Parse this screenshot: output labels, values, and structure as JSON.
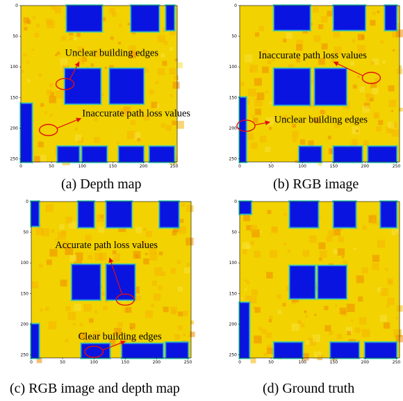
{
  "colors": {
    "background": "#f2d200",
    "mid": "#f6b400",
    "high": "#f08a00",
    "low": "#22d8b8",
    "building": "#0a14e0",
    "buildingEdge": "#1e6cf0",
    "arrow": "#e01010"
  },
  "chart_data": [
    {
      "type": "heatmap",
      "caption": "(a) Depth map",
      "xlim": [
        0,
        255
      ],
      "ylim": [
        255,
        0
      ],
      "xticks": [
        "0",
        "50",
        "100",
        "150",
        "200",
        "250"
      ],
      "yticks": [
        "0",
        "50",
        "100",
        "150",
        "200",
        "250"
      ],
      "buildings": [
        {
          "x0": 75,
          "x1": 132,
          "y0": 0,
          "y1": 42
        },
        {
          "x0": 180,
          "x1": 225,
          "y0": 0,
          "y1": 42
        },
        {
          "x0": 237,
          "x1": 250,
          "y0": 0,
          "y1": 40
        },
        {
          "x0": 72,
          "x1": 130,
          "y0": 103,
          "y1": 160
        },
        {
          "x0": 145,
          "x1": 200,
          "y0": 103,
          "y1": 160
        },
        {
          "x0": 0,
          "x1": 18,
          "y0": 160,
          "y1": 255
        },
        {
          "x0": 60,
          "x1": 95,
          "y0": 230,
          "y1": 255
        },
        {
          "x0": 100,
          "x1": 140,
          "y0": 230,
          "y1": 255
        },
        {
          "x0": 160,
          "x1": 200,
          "y0": 230,
          "y1": 255
        },
        {
          "x0": 210,
          "x1": 250,
          "y0": 230,
          "y1": 255
        }
      ],
      "annotations": [
        {
          "text": "Unclear building edges",
          "text_at": [
            72,
            82
          ],
          "circle": [
            72,
            128
          ],
          "arrow_to": [
            95,
            92
          ]
        },
        {
          "text": "Inaccurate path loss values",
          "text_at": [
            100,
            181
          ],
          "circle": [
            45,
            203
          ],
          "arrow_to": [
            98,
            184
          ]
        }
      ]
    },
    {
      "type": "heatmap",
      "caption": "(b) RGB image",
      "xlim": [
        0,
        255
      ],
      "ylim": [
        255,
        0
      ],
      "xticks": [
        "0",
        "50",
        "100",
        "150",
        "200",
        "250"
      ],
      "yticks": [
        "0",
        "50",
        "100",
        "150",
        "200",
        "250"
      ],
      "buildings": [
        {
          "x0": 55,
          "x1": 112,
          "y0": 0,
          "y1": 40
        },
        {
          "x0": 150,
          "x1": 200,
          "y0": 0,
          "y1": 40
        },
        {
          "x0": 232,
          "x1": 250,
          "y0": 0,
          "y1": 40
        },
        {
          "x0": 55,
          "x1": 112,
          "y0": 103,
          "y1": 162
        },
        {
          "x0": 120,
          "x1": 170,
          "y0": 103,
          "y1": 162
        },
        {
          "x0": 0,
          "x1": 10,
          "y0": 150,
          "y1": 255
        },
        {
          "x0": 95,
          "x1": 130,
          "y0": 230,
          "y1": 255
        },
        {
          "x0": 150,
          "x1": 195,
          "y0": 230,
          "y1": 255
        },
        {
          "x0": 205,
          "x1": 250,
          "y0": 230,
          "y1": 255
        }
      ],
      "annotations": [
        {
          "text": "Inaccurate path loss values",
          "text_at": [
            30,
            86
          ],
          "circle": [
            210,
            118
          ],
          "arrow_to": [
            150,
            92
          ]
        },
        {
          "text": "Unclear building edges",
          "text_at": [
            55,
            191
          ],
          "circle": [
            10,
            196
          ],
          "arrow_to": [
            48,
            190
          ]
        }
      ]
    },
    {
      "type": "heatmap",
      "caption": "(c) RGB image and depth map",
      "xlim": [
        0,
        255
      ],
      "ylim": [
        255,
        0
      ],
      "xticks": [
        "0",
        "50",
        "100",
        "150",
        "200",
        "250"
      ],
      "yticks": [
        "0",
        "50",
        "100",
        "150",
        "200",
        "250"
      ],
      "buildings": [
        {
          "x0": 75,
          "x1": 100,
          "y0": 0,
          "y1": 42
        },
        {
          "x0": 120,
          "x1": 160,
          "y0": 0,
          "y1": 42
        },
        {
          "x0": 205,
          "x1": 235,
          "y0": 0,
          "y1": 42
        },
        {
          "x0": 0,
          "x1": 12,
          "y0": 0,
          "y1": 40
        },
        {
          "x0": 65,
          "x1": 110,
          "y0": 103,
          "y1": 160
        },
        {
          "x0": 120,
          "x1": 165,
          "y0": 103,
          "y1": 160
        },
        {
          "x0": 0,
          "x1": 12,
          "y0": 200,
          "y1": 255
        },
        {
          "x0": 80,
          "x1": 125,
          "y0": 232,
          "y1": 255
        },
        {
          "x0": 145,
          "x1": 210,
          "y0": 232,
          "y1": 255
        },
        {
          "x0": 215,
          "x1": 250,
          "y0": 230,
          "y1": 255
        }
      ],
      "annotations": [
        {
          "text": "Accurate path loss values",
          "text_at": [
            38,
            76
          ],
          "circle": [
            150,
            160
          ],
          "arrow_to": [
            125,
            92
          ]
        },
        {
          "text": "Clear building edges",
          "text_at": [
            75,
            225
          ],
          "circle": [
            100,
            245
          ],
          "arrow_to": [
            150,
            228
          ]
        }
      ]
    },
    {
      "type": "heatmap",
      "caption": "(d) Ground truth",
      "xlim": [
        0,
        255
      ],
      "ylim": [
        255,
        0
      ],
      "xticks": [
        "0",
        "50",
        "100",
        "150",
        "200",
        "250"
      ],
      "yticks": [
        "0",
        "50",
        "100",
        "150",
        "200",
        "250"
      ],
      "buildings": [
        {
          "x0": 0,
          "x1": 18,
          "y0": 0,
          "y1": 20
        },
        {
          "x0": 80,
          "x1": 125,
          "y0": 0,
          "y1": 42
        },
        {
          "x0": 150,
          "x1": 185,
          "y0": 0,
          "y1": 42
        },
        {
          "x0": 225,
          "x1": 250,
          "y0": 0,
          "y1": 42
        },
        {
          "x0": 80,
          "x1": 120,
          "y0": 105,
          "y1": 158
        },
        {
          "x0": 125,
          "x1": 170,
          "y0": 105,
          "y1": 158
        },
        {
          "x0": 0,
          "x1": 15,
          "y0": 165,
          "y1": 255
        },
        {
          "x0": 55,
          "x1": 100,
          "y0": 230,
          "y1": 255
        },
        {
          "x0": 145,
          "x1": 190,
          "y0": 230,
          "y1": 255
        },
        {
          "x0": 200,
          "x1": 250,
          "y0": 230,
          "y1": 255
        }
      ],
      "annotations": []
    }
  ]
}
